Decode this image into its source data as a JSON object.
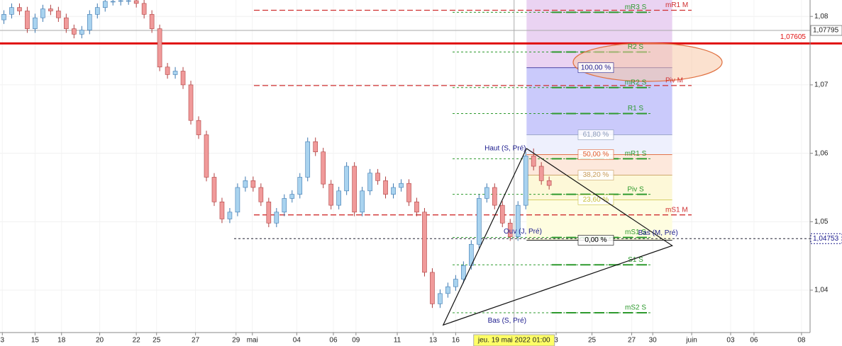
{
  "chart_data": {
    "type": "candlestick",
    "xlim": [
      0,
      104
    ],
    "ylim": [
      1.0338,
      1.0824
    ],
    "yticks": [
      {
        "value": 1.08,
        "label": "1,08"
      },
      {
        "value": 1.07,
        "label": "1,07"
      },
      {
        "value": 1.06,
        "label": "1,06"
      },
      {
        "value": 1.05,
        "label": "1,05"
      },
      {
        "value": 1.04,
        "label": "1,04"
      }
    ],
    "xticks": [
      {
        "value": 0.3,
        "label": "3"
      },
      {
        "value": 4.5,
        "label": "15"
      },
      {
        "value": 7.9,
        "label": "18"
      },
      {
        "value": 12.8,
        "label": "20"
      },
      {
        "value": 17.5,
        "label": "22"
      },
      {
        "value": 20.1,
        "label": "25"
      },
      {
        "value": 25.1,
        "label": "27"
      },
      {
        "value": 30.3,
        "label": "29"
      },
      {
        "value": 32.4,
        "label": "mai"
      },
      {
        "value": 38.1,
        "label": "04"
      },
      {
        "value": 42.8,
        "label": "06"
      },
      {
        "value": 45.7,
        "label": "09"
      },
      {
        "value": 51.0,
        "label": "11"
      },
      {
        "value": 55.6,
        "label": "13"
      },
      {
        "value": 58.5,
        "label": "16"
      },
      {
        "value": 71.4,
        "label": "3"
      },
      {
        "value": 76.0,
        "label": "25"
      },
      {
        "value": 81.1,
        "label": "27"
      },
      {
        "value": 83.8,
        "label": "30"
      },
      {
        "value": 88.8,
        "label": "juin"
      },
      {
        "value": 93.8,
        "label": "03"
      },
      {
        "value": 96.8,
        "label": "06"
      },
      {
        "value": 102.9,
        "label": "08"
      }
    ],
    "up_color": "#a9d3ef",
    "down_color": "#f09a9a",
    "candles": {
      "open": [
        1.0795,
        1.0803,
        1.0813,
        1.0808,
        1.0782,
        1.0798,
        1.0811,
        1.0808,
        1.0798,
        1.0782,
        1.0774,
        1.078,
        1.0803,
        1.0813,
        1.0822,
        1.0822,
        1.0823,
        1.0823,
        1.0819,
        1.0803,
        1.0782,
        1.0726,
        1.0715,
        1.072,
        1.07,
        1.0648,
        1.0627,
        1.0565,
        1.0529,
        1.0504,
        1.0514,
        1.055,
        1.056,
        1.055,
        1.0529,
        1.0498,
        1.0514,
        1.0534,
        1.054,
        1.0565,
        1.0617,
        1.0602,
        1.0555,
        1.0524,
        1.0545,
        1.0581,
        1.0514,
        1.0545,
        1.0571,
        1.056,
        1.054,
        1.055,
        1.0556,
        1.0529,
        1.0514,
        1.0426,
        1.038,
        1.0395,
        1.0405,
        1.0416,
        1.0436,
        1.0467,
        1.0534,
        1.055,
        1.0524,
        1.0498,
        1.0478,
        1.0524,
        1.0596,
        1.0581,
        1.056
      ],
      "high": [
        1.0809,
        1.0819,
        1.0819,
        1.0814,
        1.0804,
        1.0817,
        1.0817,
        1.0814,
        1.0804,
        1.0788,
        1.0786,
        1.0809,
        1.0819,
        1.0828,
        1.0828,
        1.0829,
        1.0829,
        1.0829,
        1.0825,
        1.0809,
        1.0788,
        1.0732,
        1.0726,
        1.0726,
        1.0706,
        1.0654,
        1.0633,
        1.0571,
        1.0535,
        1.052,
        1.0556,
        1.0566,
        1.0566,
        1.0556,
        1.0535,
        1.052,
        1.054,
        1.0546,
        1.0571,
        1.0623,
        1.0623,
        1.0608,
        1.0561,
        1.0551,
        1.0587,
        1.0587,
        1.0551,
        1.0577,
        1.0577,
        1.0566,
        1.0556,
        1.0562,
        1.0562,
        1.0535,
        1.052,
        1.0432,
        1.0401,
        1.0411,
        1.0422,
        1.0442,
        1.0473,
        1.054,
        1.0556,
        1.0556,
        1.053,
        1.0504,
        1.053,
        1.0602,
        1.0607,
        1.0587,
        1.0566
      ],
      "low": [
        1.0789,
        1.0797,
        1.0802,
        1.0776,
        1.0776,
        1.0792,
        1.0802,
        1.0792,
        1.0776,
        1.0768,
        1.0768,
        1.0774,
        1.0797,
        1.0807,
        1.0816,
        1.0816,
        1.0817,
        1.0813,
        1.0797,
        1.0776,
        1.072,
        1.0709,
        1.0709,
        1.0694,
        1.0642,
        1.0621,
        1.0559,
        1.0523,
        1.0498,
        1.0498,
        1.0508,
        1.0544,
        1.0544,
        1.0523,
        1.0492,
        1.0492,
        1.0508,
        1.0528,
        1.0534,
        1.0559,
        1.0596,
        1.0549,
        1.0518,
        1.0518,
        1.0539,
        1.0508,
        1.0508,
        1.0539,
        1.0554,
        1.0534,
        1.0534,
        1.0544,
        1.0523,
        1.0508,
        1.042,
        1.0374,
        1.0374,
        1.0389,
        1.0399,
        1.041,
        1.043,
        1.0461,
        1.0528,
        1.0518,
        1.0492,
        1.0472,
        1.0472,
        1.0518,
        1.0575,
        1.0554,
        1.0547
      ],
      "close": [
        1.0803,
        1.0813,
        1.0808,
        1.0782,
        1.0798,
        1.0811,
        1.0808,
        1.0798,
        1.0782,
        1.0774,
        1.078,
        1.0803,
        1.0813,
        1.0822,
        1.0822,
        1.0823,
        1.0823,
        1.0819,
        1.0803,
        1.0782,
        1.0726,
        1.0715,
        1.072,
        1.07,
        1.0648,
        1.0627,
        1.0565,
        1.0529,
        1.0504,
        1.0514,
        1.055,
        1.056,
        1.055,
        1.0529,
        1.0498,
        1.0514,
        1.0534,
        1.054,
        1.0565,
        1.0617,
        1.0602,
        1.0555,
        1.0524,
        1.0545,
        1.0581,
        1.0514,
        1.0545,
        1.0571,
        1.056,
        1.054,
        1.055,
        1.0556,
        1.0529,
        1.0514,
        1.0426,
        1.038,
        1.0395,
        1.0405,
        1.0416,
        1.0436,
        1.0467,
        1.0534,
        1.055,
        1.0524,
        1.0498,
        1.0478,
        1.0524,
        1.0596,
        1.0581,
        1.056,
        1.0553
      ]
    },
    "fibonacci": {
      "x": [
        67.6,
        86.3
      ],
      "top_color": "#ead3f2",
      "levels": [
        {
          "label": "100,00 %",
          "price": 1.0725,
          "color": "#cacafb",
          "text_color": "#1a1a8c"
        },
        {
          "label": "61,80 %",
          "price": 1.0627,
          "color": "#eef0fd",
          "text_color": "#8a9ab8"
        },
        {
          "label": "50,00 %",
          "price": 1.0598,
          "color": "#fde8dc",
          "text_color": "#e06030"
        },
        {
          "label": "38,20 %",
          "price": 1.0568,
          "color": "#fdf8d8",
          "text_color": "#c8a060"
        },
        {
          "label": "23,60 %",
          "price": 1.0532,
          "color": "#fefde0",
          "text_color": "#c8c040"
        },
        {
          "label": "0,00 %",
          "price": 1.0473,
          "color": null,
          "text_color": "#000000"
        }
      ]
    },
    "levels": [
      {
        "label": "mR1 M",
        "price": 1.0809,
        "color": "#d03030"
      },
      {
        "label": "mR3 S",
        "price": 1.0806,
        "color": "#2e9a2e"
      },
      {
        "label": "R2 S",
        "price": 1.0748,
        "color": "#2e9a2e"
      },
      {
        "label": "Piv M",
        "price": 1.0699,
        "color": "#d03030"
      },
      {
        "label": "mR2 S",
        "price": 1.0696,
        "color": "#2e9a2e"
      },
      {
        "label": "R1 S",
        "price": 1.0658,
        "color": "#2e9a2e"
      },
      {
        "label": "mR1 S",
        "price": 1.0592,
        "color": "#2e9a2e"
      },
      {
        "label": "Piv S",
        "price": 1.054,
        "color": "#2e9a2e"
      },
      {
        "label": "mS1 M",
        "price": 1.051,
        "color": "#d03030"
      },
      {
        "label": "mS1 S",
        "price": 1.0477,
        "color": "#2e9a2e"
      },
      {
        "label": "S1 S",
        "price": 1.0437,
        "color": "#2e9a2e"
      },
      {
        "label": "mS2 S",
        "price": 1.0367,
        "color": "#2e9a2e"
      }
    ],
    "red_line": {
      "price": 1.07605,
      "label": "1,07605",
      "color": "#e01010"
    },
    "open_level": {
      "label": "Ouv (J, Pré)",
      "price": 1.04753,
      "price_label": "1,04753"
    },
    "pattern": {
      "x": [
        56.9,
        67.6,
        86.3
      ],
      "y": [
        1.0349,
        1.0607,
        1.0465
      ],
      "labels": [
        "Bas (S, Pré)",
        "Haut (S, Pré)",
        "Bas (M, Pré)"
      ]
    },
    "crosshair": {
      "x": 66.0,
      "price": 1.07795,
      "price_label": "1,07795",
      "date_label": "jeu. 19 mai 2022 01:00"
    }
  }
}
